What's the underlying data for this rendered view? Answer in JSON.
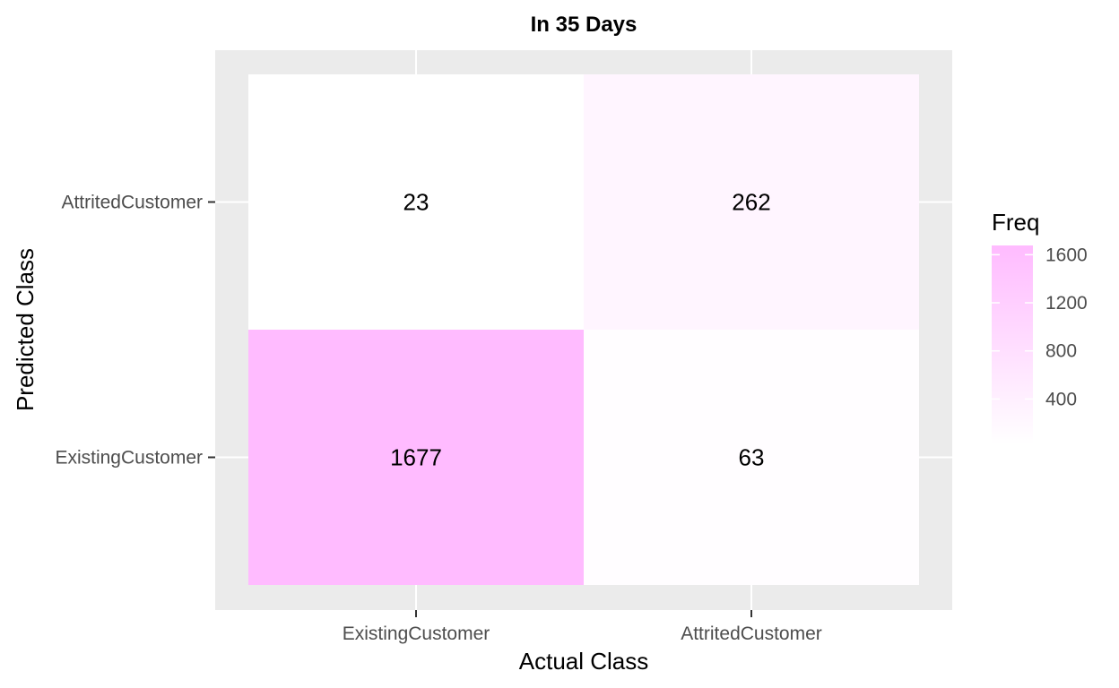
{
  "chart_data": {
    "type": "heatmap",
    "title": "In 35 Days",
    "xlabel": "Actual Class",
    "ylabel": "Predicted Class",
    "x_categories": [
      "ExistingCustomer",
      "AttritedCustomer"
    ],
    "y_categories": [
      "AttritedCustomer",
      "ExistingCustomer"
    ],
    "cells": [
      {
        "x": "ExistingCustomer",
        "y": "AttritedCustomer",
        "value": 23
      },
      {
        "x": "AttritedCustomer",
        "y": "AttritedCustomer",
        "value": 262
      },
      {
        "x": "ExistingCustomer",
        "y": "ExistingCustomer",
        "value": 1677
      },
      {
        "x": "AttritedCustomer",
        "y": "ExistingCustomer",
        "value": 63
      }
    ],
    "legend": {
      "title": "Freq",
      "ticks": [
        400,
        800,
        1200,
        1600
      ],
      "range": [
        23,
        1677
      ],
      "low_color": "#ffffff",
      "high_color": "#ffbbff",
      "placement": "right"
    },
    "panel_background": "#ebebeb",
    "grid": true
  }
}
